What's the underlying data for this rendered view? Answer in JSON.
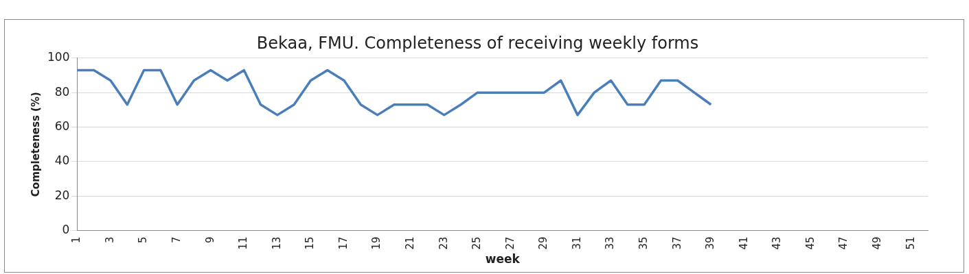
{
  "chart_data": {
    "type": "line",
    "title": "Bekaa, FMU. Completeness of receiving weekly forms",
    "xlabel": "week",
    "ylabel": "Completeness (%)",
    "categories": [
      "1",
      null,
      "3",
      null,
      "5",
      null,
      "7",
      null,
      "9",
      null,
      "11",
      null,
      "13",
      null,
      "15",
      null,
      "17",
      null,
      "19",
      null,
      "21",
      null,
      "23",
      null,
      "25",
      null,
      "27",
      null,
      "29",
      null,
      "31",
      null,
      "33",
      null,
      "35",
      null,
      "37",
      null,
      "39",
      null,
      "41",
      null,
      "43",
      null,
      "45",
      null,
      "47",
      null,
      "49",
      null,
      "51",
      null
    ],
    "series": [
      {
        "color": "#4a7ebb",
        "values": [
          93,
          93,
          87,
          73,
          93,
          93,
          73,
          87,
          93,
          87,
          93,
          73,
          67,
          73,
          87,
          93,
          87,
          73,
          67,
          73,
          73,
          73,
          67,
          73,
          80,
          80,
          80,
          80,
          80,
          87,
          67,
          80,
          87,
          73,
          73,
          87,
          87,
          80,
          73,
          null,
          null,
          null,
          null,
          null,
          null,
          null,
          null,
          null,
          null,
          null,
          null,
          null
        ]
      }
    ],
    "ylim": [
      0,
      100
    ],
    "yticks": [
      0,
      20,
      40,
      60,
      80,
      100
    ],
    "grid": "y",
    "legend": false,
    "marker": "none",
    "line_style": "solid"
  }
}
